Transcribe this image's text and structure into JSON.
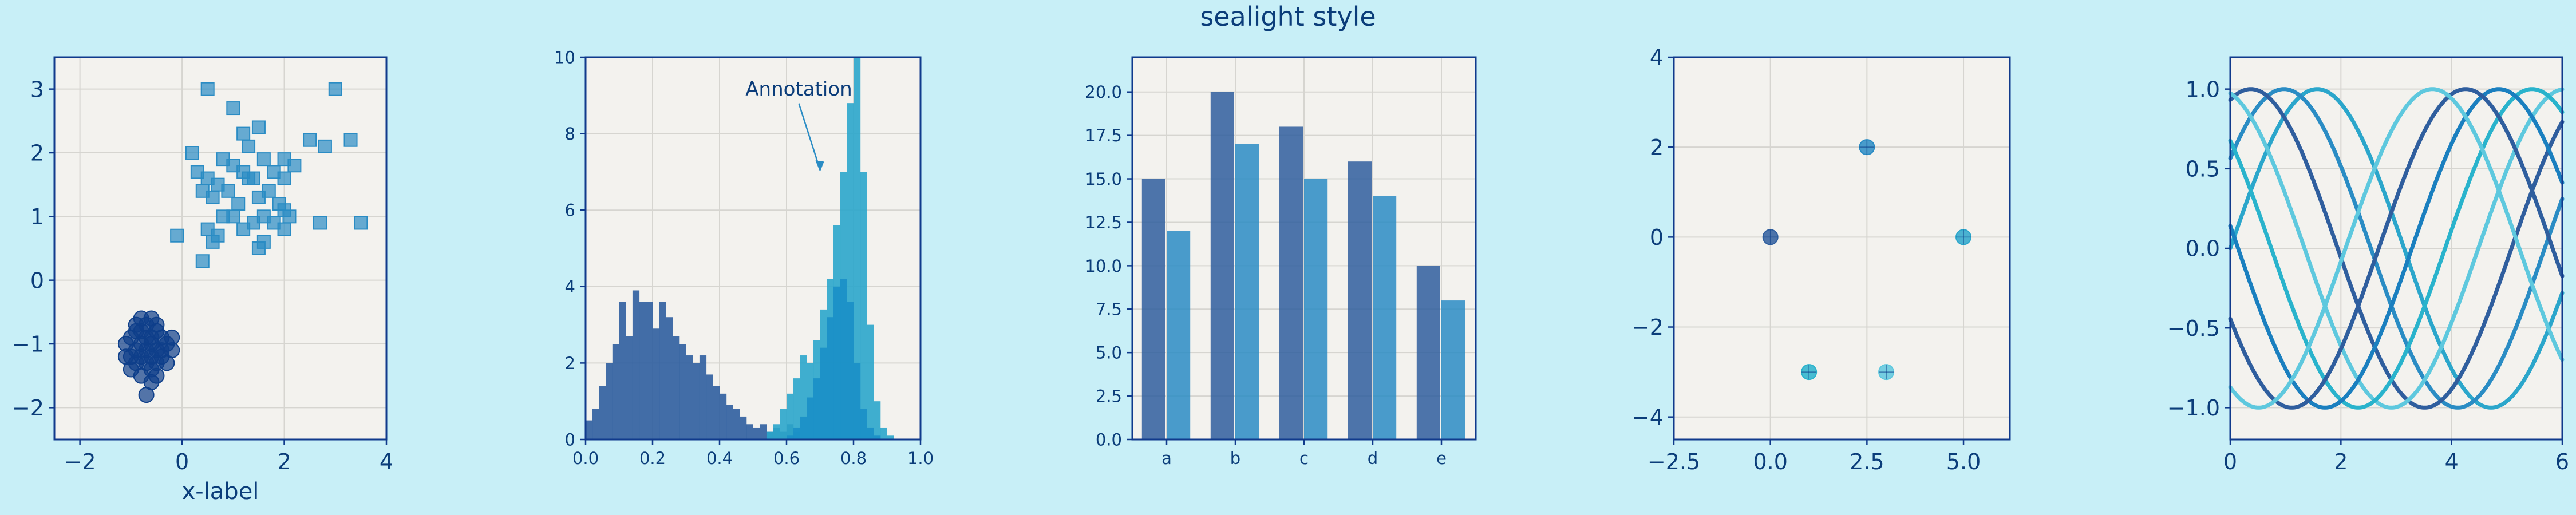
{
  "suptitle": "sealight style",
  "colors": {
    "figure_bg": "#c8eff7",
    "axes_bg": "#f3f2ee",
    "spine": "#103a8c",
    "grid": "#d6d5d0",
    "text": "#0b3d7a",
    "navy": "#2f5e9e",
    "blue": "#2a8cc4",
    "teal": "#2ba6cb",
    "sky": "#5ec8de",
    "dark": "#0e3f8a"
  },
  "chart_data": [
    {
      "type": "scatter",
      "xlabel": "x-label",
      "xlim": [
        -2.5,
        4
      ],
      "ylim": [
        -2.5,
        3.5
      ],
      "xticks": [
        -2,
        0,
        2,
        4
      ],
      "yticks": [
        -2,
        -1,
        0,
        1,
        2,
        3
      ],
      "series": [
        {
          "marker": "circle",
          "color": "#0e3f8a",
          "points": [
            [
              -0.8,
              -0.6
            ],
            [
              -0.6,
              -0.6
            ],
            [
              -0.7,
              -0.7
            ],
            [
              -0.9,
              -0.8
            ],
            [
              -0.5,
              -0.8
            ],
            [
              -0.4,
              -0.9
            ],
            [
              -0.7,
              -0.9
            ],
            [
              -1.0,
              -0.9
            ],
            [
              -0.6,
              -1.0
            ],
            [
              -0.8,
              -1.0
            ],
            [
              -0.3,
              -1.0
            ],
            [
              -1.1,
              -1.0
            ],
            [
              -0.5,
              -1.1
            ],
            [
              -0.7,
              -1.1
            ],
            [
              -0.9,
              -1.1
            ],
            [
              -0.2,
              -1.1
            ],
            [
              -0.6,
              -1.2
            ],
            [
              -0.8,
              -1.2
            ],
            [
              -1.0,
              -1.2
            ],
            [
              -0.4,
              -1.2
            ],
            [
              -0.7,
              -1.3
            ],
            [
              -0.5,
              -1.3
            ],
            [
              -0.9,
              -1.3
            ],
            [
              -0.6,
              -1.4
            ],
            [
              -1.0,
              -1.4
            ],
            [
              -0.3,
              -1.3
            ],
            [
              -0.8,
              -1.5
            ],
            [
              -0.6,
              -1.6
            ],
            [
              -0.7,
              -1.8
            ],
            [
              -0.5,
              -0.7
            ],
            [
              -0.9,
              -0.7
            ],
            [
              -0.4,
              -1.1
            ],
            [
              -0.6,
              -0.9
            ],
            [
              -0.8,
              -0.8
            ],
            [
              -1.1,
              -1.2
            ],
            [
              -0.2,
              -0.9
            ],
            [
              -0.5,
              -1.5
            ]
          ]
        },
        {
          "marker": "square",
          "color": "#2a8cc4",
          "points": [
            [
              0.5,
              3.0
            ],
            [
              1.0,
              2.7
            ],
            [
              3.0,
              3.0
            ],
            [
              1.2,
              2.3
            ],
            [
              1.5,
              2.4
            ],
            [
              2.5,
              2.2
            ],
            [
              2.8,
              2.1
            ],
            [
              3.3,
              2.2
            ],
            [
              0.2,
              2.0
            ],
            [
              0.8,
              1.9
            ],
            [
              1.3,
              2.1
            ],
            [
              1.6,
              1.9
            ],
            [
              2.0,
              1.9
            ],
            [
              2.2,
              1.8
            ],
            [
              0.3,
              1.7
            ],
            [
              0.5,
              1.6
            ],
            [
              0.7,
              1.5
            ],
            [
              1.0,
              1.8
            ],
            [
              1.2,
              1.7
            ],
            [
              1.4,
              1.6
            ],
            [
              1.8,
              1.7
            ],
            [
              2.0,
              1.6
            ],
            [
              0.4,
              1.4
            ],
            [
              0.6,
              1.3
            ],
            [
              0.9,
              1.4
            ],
            [
              1.1,
              1.2
            ],
            [
              1.5,
              1.3
            ],
            [
              1.7,
              1.4
            ],
            [
              1.9,
              1.2
            ],
            [
              2.1,
              1.0
            ],
            [
              1.0,
              1.0
            ],
            [
              1.4,
              0.9
            ],
            [
              1.6,
              1.0
            ],
            [
              1.8,
              0.9
            ],
            [
              2.0,
              0.8
            ],
            [
              2.7,
              0.9
            ],
            [
              3.5,
              0.9
            ],
            [
              0.5,
              0.8
            ],
            [
              0.7,
              0.7
            ],
            [
              1.2,
              0.8
            ],
            [
              1.6,
              0.6
            ],
            [
              1.5,
              0.5
            ],
            [
              -0.1,
              0.7
            ],
            [
              0.4,
              0.3
            ],
            [
              0.6,
              0.6
            ],
            [
              2.0,
              1.1
            ],
            [
              1.3,
              1.6
            ],
            [
              0.8,
              1.0
            ]
          ]
        }
      ]
    },
    {
      "type": "histogram",
      "annotation": "Annotation",
      "annotation_xy": [
        0.7,
        7.0
      ],
      "annotation_text_xy": [
        0.5,
        9.0
      ],
      "xlim": [
        0.0,
        1.0
      ],
      "ylim": [
        0,
        10
      ],
      "xticks": [
        0.0,
        0.2,
        0.4,
        0.6,
        0.8,
        1.0
      ],
      "yticks": [
        0,
        2,
        4,
        6,
        8,
        10
      ],
      "series": [
        {
          "color": "#2f5e9e",
          "bin_start": 0.0,
          "bin_width": 0.02,
          "values": [
            0.5,
            0.8,
            1.4,
            2.0,
            2.5,
            3.6,
            2.7,
            3.9,
            3.6,
            3.6,
            2.9,
            3.6,
            3.2,
            2.7,
            2.5,
            2.2,
            2.0,
            2.2,
            1.7,
            1.4,
            1.2,
            0.9,
            0.8,
            0.6,
            0.4,
            0.3,
            0.4,
            0.2,
            0.3,
            0.2,
            0.4,
            0.2
          ]
        },
        {
          "color": "#2ba6cb",
          "bin_start": 0.54,
          "bin_width": 0.02,
          "values": [
            0.2,
            0.4,
            0.8,
            1.2,
            1.6,
            2.2,
            2.0,
            2.6,
            3.4,
            4.2,
            5.6,
            7.0,
            8.8,
            10.0,
            7.0,
            3.0,
            1.0,
            0.3,
            0.1
          ]
        },
        {
          "color": "#1a8fc6",
          "bin_start": 0.6,
          "bin_width": 0.02,
          "values": [
            0.1,
            0.3,
            0.6,
            1.1,
            1.6,
            2.4,
            3.2,
            4.0,
            4.2,
            3.6,
            2.0,
            0.8,
            0.3,
            0.1
          ]
        }
      ]
    },
    {
      "type": "bar",
      "categories": [
        "a",
        "b",
        "c",
        "d",
        "e"
      ],
      "ylim": [
        0,
        22
      ],
      "yticks": [
        0.0,
        2.5,
        5.0,
        7.5,
        10.0,
        12.5,
        15.0,
        17.5,
        20.0
      ],
      "series": [
        {
          "color": "#2f5e9e",
          "values": [
            15,
            20,
            18,
            16,
            10
          ]
        },
        {
          "color": "#2a8cc4",
          "values": [
            12,
            17,
            15,
            14,
            8
          ]
        }
      ]
    },
    {
      "type": "scatter",
      "xlim": [
        -2.5,
        6.2
      ],
      "ylim": [
        -4.5,
        4
      ],
      "xticks": [
        -2.5,
        0.0,
        2.5,
        5.0
      ],
      "yticks": [
        -4,
        -2,
        0,
        2,
        4
      ],
      "points": [
        {
          "x": 0,
          "y": 0,
          "color": "#2f5e9e"
        },
        {
          "x": 2.5,
          "y": 2,
          "color": "#2a8cc4"
        },
        {
          "x": 5,
          "y": 0,
          "color": "#2ba6cb"
        },
        {
          "x": 1,
          "y": -3,
          "color": "#29b3cc"
        },
        {
          "x": 3,
          "y": -3,
          "color": "#5ec8de"
        }
      ]
    },
    {
      "type": "line",
      "xlim": [
        0,
        6
      ],
      "ylim": [
        -1.2,
        1.2
      ],
      "xticks": [
        0,
        2,
        4,
        6
      ],
      "yticks": [
        -1.0,
        -0.5,
        0.0,
        0.5,
        1.0
      ],
      "series": [
        {
          "phase": 0.0,
          "color": "#2ba6cb"
        },
        {
          "phase": 0.6,
          "color": "#2a8cc4"
        },
        {
          "phase": 1.2,
          "color": "#2f5e9e"
        },
        {
          "phase": 1.8,
          "color": "#5ec8de"
        },
        {
          "phase": 2.4,
          "color": "#29b3cc"
        },
        {
          "phase": 3.0,
          "color": "#1a7fbf"
        },
        {
          "phase": 3.6,
          "color": "#2f5e9e"
        },
        {
          "phase": 4.2,
          "color": "#5ec8de"
        }
      ]
    }
  ]
}
